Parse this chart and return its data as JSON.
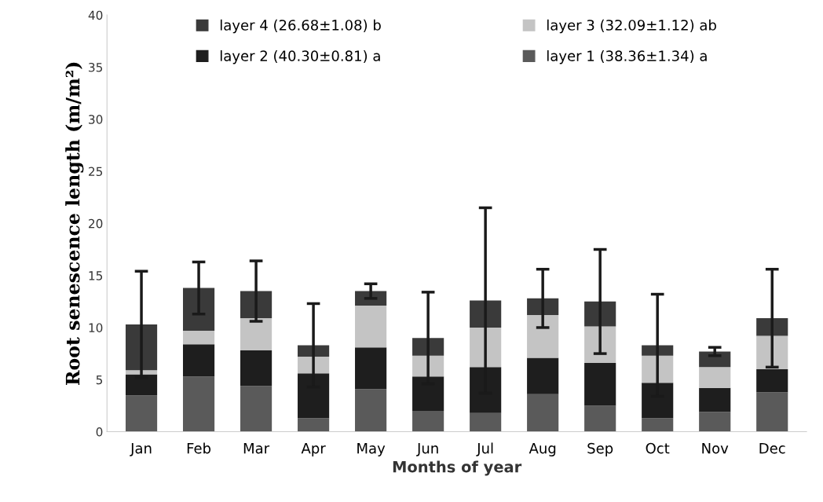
{
  "chart_data": {
    "type": "bar",
    "stacked": true,
    "xlabel": "Months of year",
    "ylabel": "Root senescence length (m/m²)",
    "categories": [
      "Jan",
      "Feb",
      "Mar",
      "Apr",
      "May",
      "Jun",
      "Jul",
      "Aug",
      "Sep",
      "Oct",
      "Nov",
      "Dec"
    ],
    "series": [
      {
        "name": "layer 1 (38.36±1.34) a",
        "color": "#5a5a5a",
        "values": [
          3.5,
          5.3,
          4.4,
          1.3,
          4.1,
          2.0,
          1.8,
          3.6,
          2.5,
          1.3,
          1.9,
          3.8
        ]
      },
      {
        "name": "layer 2 (40.30±0.81) a",
        "color": "#1e1e1e",
        "values": [
          2.0,
          3.1,
          3.4,
          4.3,
          4.0,
          3.3,
          4.4,
          3.5,
          4.1,
          3.4,
          2.3,
          2.2
        ]
      },
      {
        "name": "layer 3 (32.09±1.12) ab",
        "color": "#c4c4c4",
        "values": [
          0.4,
          1.3,
          3.1,
          1.6,
          4.0,
          2.0,
          3.8,
          4.1,
          3.5,
          2.6,
          2.0,
          3.2
        ]
      },
      {
        "name": "layer 4 (26.68±1.08) b",
        "color": "#3a3a3a",
        "values": [
          4.4,
          4.1,
          2.6,
          1.1,
          1.4,
          1.7,
          2.6,
          1.6,
          2.4,
          1.0,
          1.5,
          1.7
        ],
        "errors": [
          5.1,
          2.5,
          2.9,
          4.0,
          0.7,
          4.4,
          8.9,
          2.8,
          5.0,
          4.9,
          0.4,
          4.7
        ]
      }
    ],
    "ylim": [
      0,
      40
    ],
    "yticks": [
      0,
      5,
      10,
      15,
      20,
      25,
      30,
      35,
      40
    ],
    "grid": false,
    "legend": "top"
  }
}
